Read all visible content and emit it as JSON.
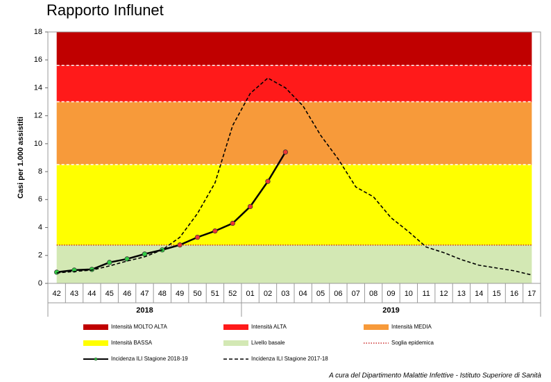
{
  "chart_data": {
    "type": "line",
    "title": "Rapporto Influnet",
    "ylabel": "Casi per 1.000 assistiti",
    "footnote": "A cura del Dipartimento Malattie Infettive - Istituto Superiore di Sanità",
    "categories": [
      "42",
      "43",
      "44",
      "45",
      "46",
      "47",
      "48",
      "49",
      "50",
      "51",
      "52",
      "01",
      "02",
      "03",
      "04",
      "05",
      "06",
      "07",
      "08",
      "09",
      "10",
      "11",
      "12",
      "13",
      "14",
      "15",
      "16",
      "17"
    ],
    "year_groups": [
      {
        "label": "2018",
        "first": "42",
        "last": "52"
      },
      {
        "label": "2019",
        "first": "01",
        "last": "17"
      }
    ],
    "ylim": [
      0,
      18
    ],
    "yticks": [
      0,
      2,
      4,
      6,
      8,
      10,
      12,
      14,
      16,
      18
    ],
    "bands": [
      {
        "name": "Intensità MOLTO ALTA",
        "from": 15.6,
        "to": 18,
        "color": "#c00000"
      },
      {
        "name": "Intensità ALTA",
        "from": 13,
        "to": 15.6,
        "color": "#ff1a1a"
      },
      {
        "name": "Intensità MEDIA",
        "from": 8.5,
        "to": 13,
        "color": "#f79a3a"
      },
      {
        "name": "Intensità BASSA",
        "from": 2.74,
        "to": 8.5,
        "color": "#ffff00"
      },
      {
        "name": "Livello basale",
        "from": 0,
        "to": 2.74,
        "color": "#d3e8b4"
      }
    ],
    "threshold": {
      "name": "Soglia epidemica",
      "value": 2.74,
      "color": "#c00000"
    },
    "series": [
      {
        "name": "Incidenza ILI Stagione 2018-19",
        "color": "#000000",
        "dashed": false,
        "marker_colors": {
          "below": "#33cc44",
          "above": "#ee3333"
        },
        "values": [
          0.8,
          0.95,
          1.0,
          1.5,
          1.75,
          2.1,
          2.4,
          2.75,
          3.3,
          3.75,
          4.3,
          5.5,
          7.3,
          9.4,
          null,
          null,
          null,
          null,
          null,
          null,
          null,
          null,
          null,
          null,
          null,
          null,
          null,
          null
        ]
      },
      {
        "name": "Incidenza ILI Stagione 2017-18",
        "color": "#000000",
        "dashed": true,
        "values": [
          0.75,
          0.85,
          0.95,
          1.25,
          1.6,
          1.9,
          2.4,
          3.3,
          5.0,
          7.2,
          11.3,
          13.6,
          14.7,
          14.0,
          12.7,
          10.6,
          8.9,
          6.9,
          6.2,
          4.7,
          3.7,
          2.6,
          2.2,
          1.7,
          1.3,
          1.1,
          0.9,
          0.6
        ]
      }
    ]
  }
}
